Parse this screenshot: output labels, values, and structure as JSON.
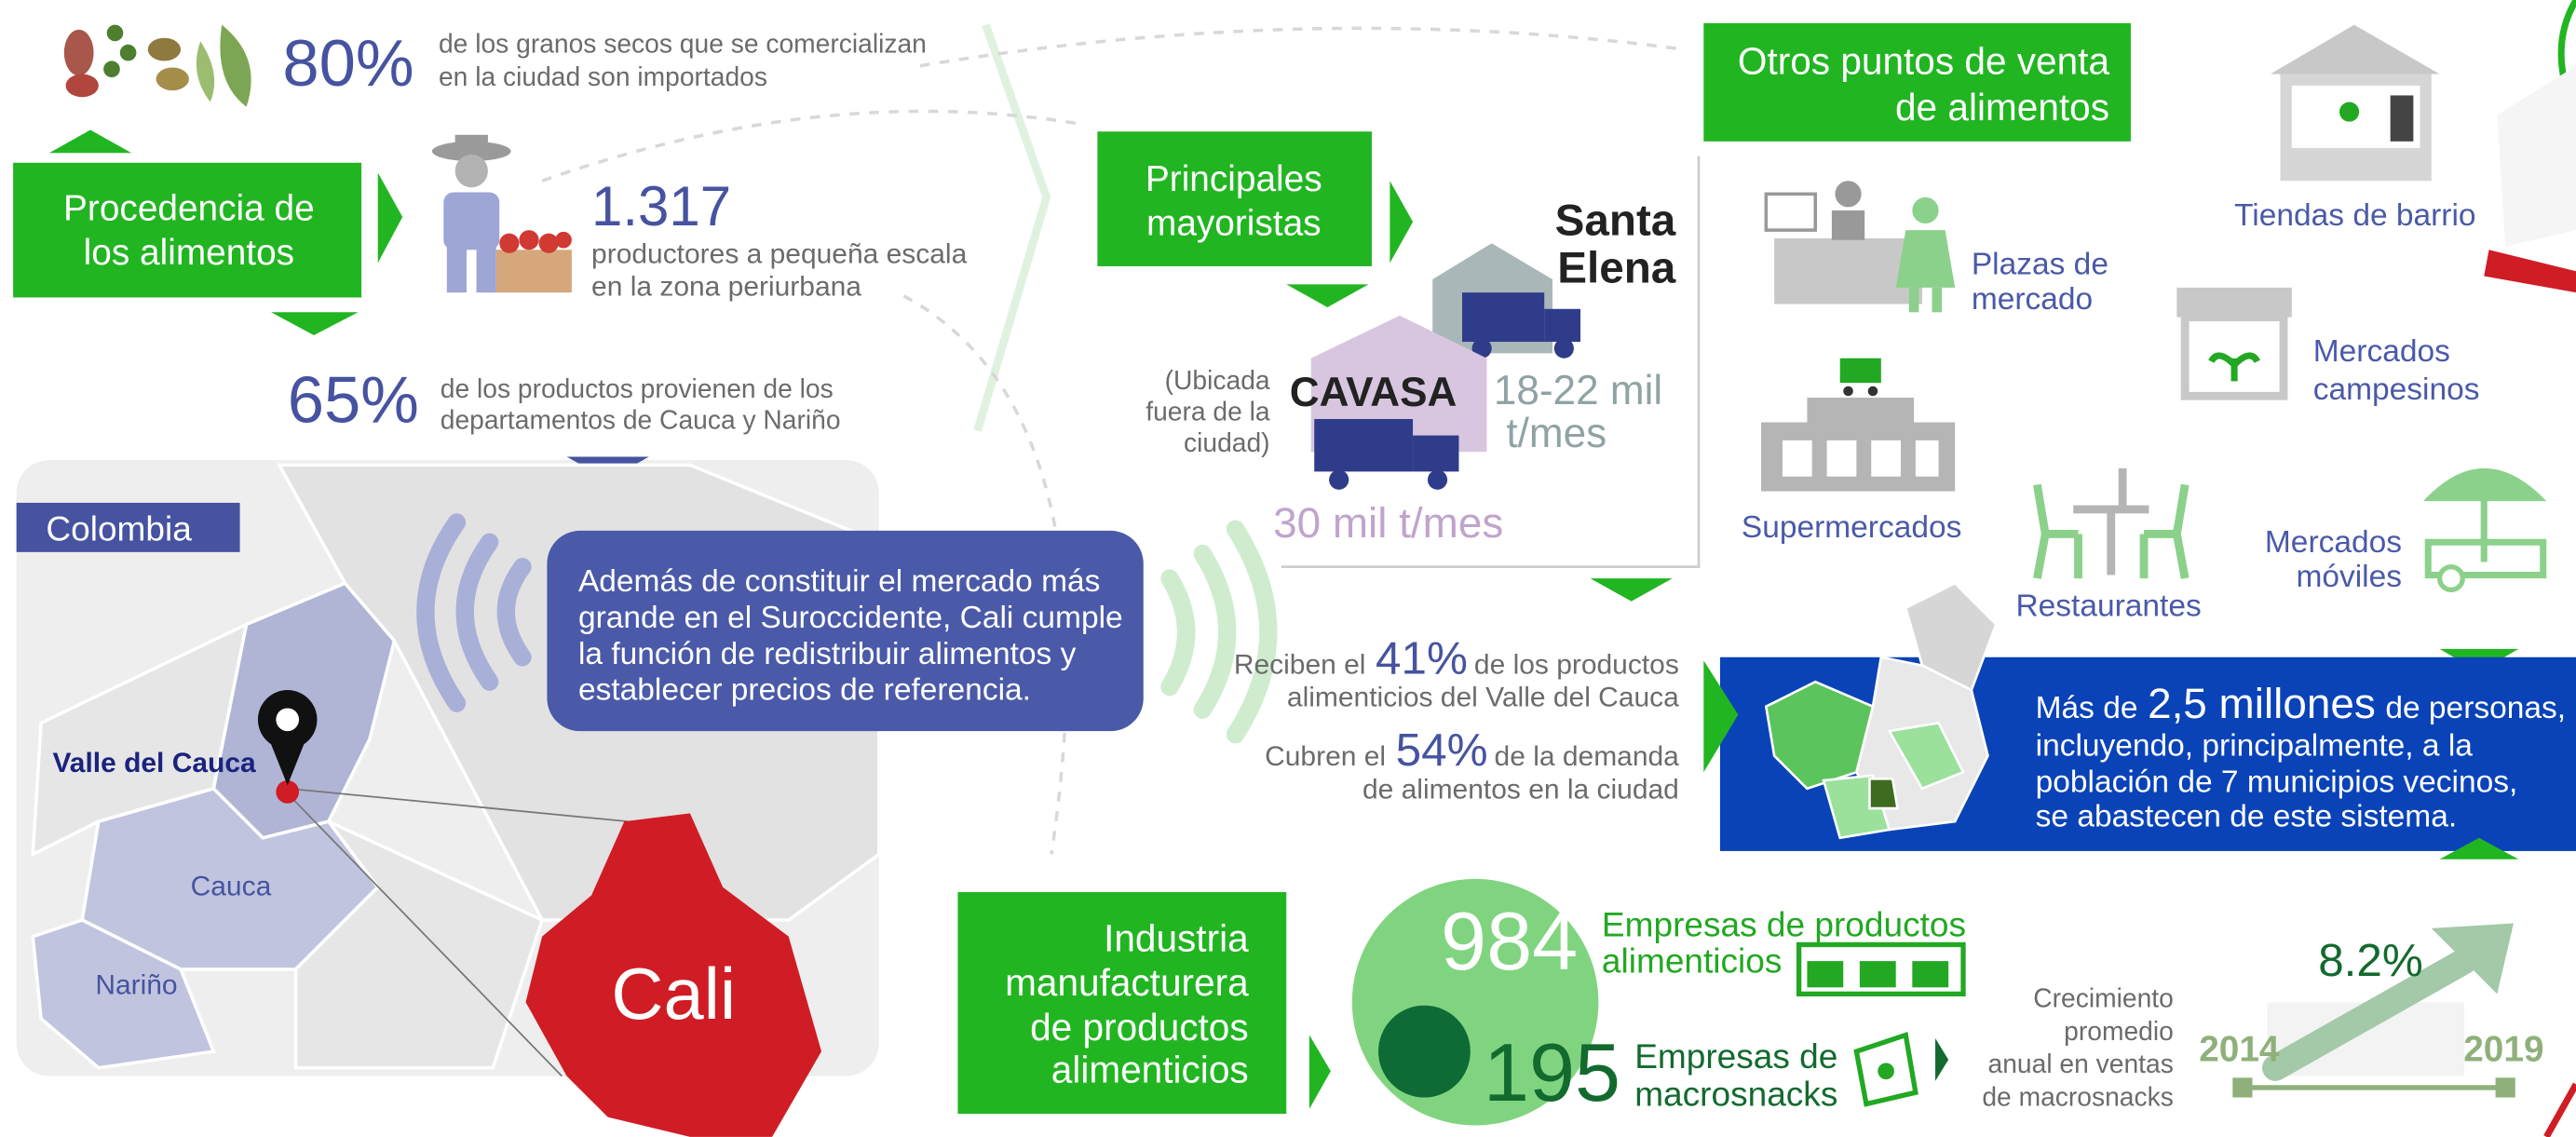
{
  "origin": {
    "title": [
      "Procedencia de",
      "los alimentos"
    ],
    "imported": {
      "value": "80%",
      "text": [
        "de los granos secos que se comercializan",
        "en la ciudad son importados"
      ]
    },
    "producers": {
      "value": "1.317",
      "text": [
        "productores a pequeña escala",
        "en la zona periurbana"
      ]
    },
    "regions": {
      "value": "65%",
      "text": [
        "de los productos provienen de los",
        "departamentos de Cauca y  Nariño"
      ]
    }
  },
  "map": {
    "country": "Colombia",
    "departments": [
      "Valle del Cauca",
      "Cauca",
      "Nariño"
    ],
    "city": "Cali",
    "callout": [
      "Además de constituir el mercado más",
      "grande en el Suroccidente, Cali cumple",
      "la función de redistribuir alimentos y",
      "establecer precios de referencia."
    ]
  },
  "wholesale": {
    "title": [
      "Principales",
      "mayoristas"
    ],
    "santa_elena": {
      "name": [
        "Santa",
        "Elena"
      ],
      "volume": [
        "18-22 mil",
        "t/mes"
      ]
    },
    "cavasa": {
      "name": "CAVASA",
      "note": [
        "(Ubicada",
        "fuera de la",
        "ciudad)"
      ],
      "volume": "30 mil t/mes"
    },
    "receive": {
      "before": "Reciben el",
      "value": "41%",
      "after": "de los productos",
      "line2": "alimenticios del Valle del Cauca"
    },
    "cover": {
      "before": "Cubren el",
      "value": "54%",
      "after": "de la demanda",
      "line2": "de alimentos en la ciudad"
    }
  },
  "other_outlets": {
    "title": [
      "Otros puntos de venta",
      "de alimentos"
    ],
    "items": [
      {
        "label": [
          "Tiendas de barrio"
        ]
      },
      {
        "label": [
          "Plazas de",
          "mercado"
        ]
      },
      {
        "label": [
          "Mercados",
          "campesinos"
        ]
      },
      {
        "label": [
          "Supermercados"
        ]
      },
      {
        "label": [
          "Restaurantes"
        ]
      },
      {
        "label": [
          "Mercados",
          "móviles"
        ]
      }
    ]
  },
  "population": {
    "before": "Más de",
    "value": "2,5 millones",
    "after": "de personas,",
    "lines": [
      "incluyendo, principalmente, a la",
      "población de 7 municipios vecinos,",
      "se abastecen de este sistema."
    ]
  },
  "industry": {
    "title": [
      "Industria",
      "manufacturera",
      "de productos",
      "alimenticios"
    ],
    "food_companies": {
      "value": "984",
      "label": [
        "Empresas de productos",
        "alimenticios"
      ]
    },
    "snack_companies": {
      "value": "195",
      "label": [
        "Empresas de",
        "macrosnacks"
      ]
    },
    "growth": {
      "label": [
        "Crecimiento",
        "promedio",
        "anual en ventas",
        "de macrosnacks"
      ],
      "value": "8.2%",
      "start": "2014",
      "end": "2019"
    }
  }
}
